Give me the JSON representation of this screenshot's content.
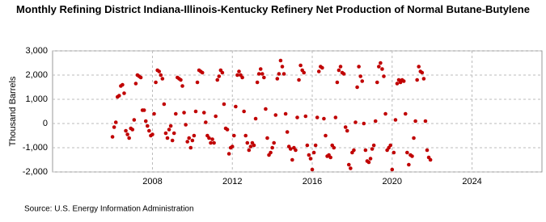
{
  "chart_data": {
    "type": "scatter",
    "title": "Monthly Refining District Indiana-Illinois-Kentucky Refinery Net Production of Normal Butane-Butylene",
    "y_label": "Thousand Barrels",
    "source": "Source: U.S. Energy Information Administration",
    "xlim": [
      2003,
      2027.5
    ],
    "xticks": [
      2008,
      2012,
      2016,
      2020,
      2024
    ],
    "ylim": [
      -2000,
      3000
    ],
    "yticks": [
      {
        "value": -2000,
        "label": "-2,000"
      },
      {
        "value": -1000,
        "label": "-1,000"
      },
      0,
      {
        "value": 1000,
        "label": "1,000"
      },
      {
        "value": 2000,
        "label": "2,000"
      },
      {
        "value": 3000,
        "label": "3,000"
      }
    ],
    "grid": true,
    "series": [
      {
        "color": "#c00000",
        "x": [
          2006,
          2006.083,
          2006.167,
          2006.25,
          2006.333,
          2006.417,
          2006.5,
          2006.583,
          2006.667,
          2006.75,
          2006.833,
          2006.917,
          2007,
          2007.083,
          2007.167,
          2007.25,
          2007.333,
          2007.417,
          2007.5,
          2007.583,
          2007.667,
          2007.75,
          2007.833,
          2007.917,
          2008,
          2008.083,
          2008.167,
          2008.25,
          2008.333,
          2008.417,
          2008.5,
          2008.583,
          2008.667,
          2008.75,
          2008.833,
          2008.917,
          2009,
          2009.083,
          2009.167,
          2009.25,
          2009.333,
          2009.417,
          2009.5,
          2009.583,
          2009.667,
          2009.75,
          2009.833,
          2009.917,
          2010,
          2010.083,
          2010.167,
          2010.25,
          2010.333,
          2010.417,
          2010.5,
          2010.583,
          2010.667,
          2010.75,
          2010.833,
          2010.917,
          2011,
          2011.083,
          2011.167,
          2011.25,
          2011.333,
          2011.417,
          2011.5,
          2011.583,
          2011.667,
          2011.75,
          2011.833,
          2011.917,
          2012,
          2012.083,
          2012.167,
          2012.25,
          2012.333,
          2012.417,
          2012.5,
          2012.583,
          2012.667,
          2012.75,
          2012.833,
          2012.917,
          2013,
          2013.083,
          2013.167,
          2013.25,
          2013.333,
          2013.417,
          2013.5,
          2013.583,
          2013.667,
          2013.75,
          2013.833,
          2013.917,
          2014,
          2014.083,
          2014.167,
          2014.25,
          2014.333,
          2014.417,
          2014.5,
          2014.583,
          2014.667,
          2014.75,
          2014.833,
          2014.917,
          2015,
          2015.083,
          2015.167,
          2015.25,
          2015.333,
          2015.417,
          2015.5,
          2015.583,
          2015.667,
          2015.75,
          2015.833,
          2015.917,
          2016,
          2016.083,
          2016.167,
          2016.25,
          2016.333,
          2016.417,
          2016.5,
          2016.583,
          2016.667,
          2016.75,
          2016.833,
          2016.917,
          2017,
          2017.083,
          2017.167,
          2017.25,
          2017.333,
          2017.417,
          2017.5,
          2017.583,
          2017.667,
          2017.75,
          2017.833,
          2017.917,
          2018,
          2018.083,
          2018.167,
          2018.25,
          2018.333,
          2018.417,
          2018.5,
          2018.583,
          2018.667,
          2018.75,
          2018.833,
          2018.917,
          2019,
          2019.083,
          2019.167,
          2019.25,
          2019.333,
          2019.417,
          2019.5,
          2019.583,
          2019.667,
          2019.75,
          2019.833,
          2019.917,
          2020,
          2020.083,
          2020.167,
          2020.25,
          2020.333,
          2020.417,
          2020.5,
          2020.583,
          2020.667,
          2020.75,
          2020.833,
          2020.917,
          2021,
          2021.083,
          2021.167,
          2021.25,
          2021.333,
          2021.417,
          2021.5,
          2021.583,
          2021.667,
          2021.75,
          2021.833,
          2021.917
        ],
        "values": [
          -550,
          -150,
          50,
          1100,
          1150,
          1550,
          1600,
          1250,
          -300,
          -450,
          -600,
          -200,
          -250,
          150,
          1650,
          2000,
          1950,
          1900,
          550,
          550,
          100,
          -100,
          -300,
          -500,
          -450,
          400,
          1700,
          2200,
          2150,
          2000,
          1850,
          800,
          -400,
          -600,
          -250,
          -100,
          -700,
          -400,
          400,
          1900,
          1850,
          1800,
          1550,
          450,
          -50,
          -750,
          -600,
          -1000,
          -700,
          -500,
          500,
          1700,
          2200,
          2150,
          2100,
          450,
          50,
          -500,
          -600,
          -800,
          -650,
          -800,
          300,
          1800,
          1950,
          2200,
          2100,
          800,
          -200,
          -250,
          -1250,
          -1000,
          -950,
          -500,
          700,
          2000,
          2150,
          2000,
          1900,
          500,
          -500,
          -800,
          -1100,
          -950,
          -800,
          -900,
          200,
          1700,
          2050,
          2250,
          2050,
          1900,
          600,
          -600,
          -1300,
          -1200,
          -1000,
          -800,
          350,
          1850,
          2050,
          2600,
          2350,
          2050,
          400,
          -350,
          -950,
          -1050,
          -1500,
          -1000,
          -1100,
          250,
          1800,
          2400,
          2200,
          2100,
          300,
          -900,
          -1300,
          -1450,
          -1900,
          -1200,
          -900,
          250,
          2150,
          2350,
          2300,
          200,
          -500,
          -1350,
          -1300,
          -1400,
          -900,
          -1000,
          250,
          1700,
          2200,
          2350,
          2100,
          2050,
          -150,
          -300,
          -1700,
          -1850,
          -1200,
          -1100,
          50,
          1500,
          2350,
          1950,
          1750,
          0,
          -1100,
          -1550,
          -1600,
          -1450,
          -1050,
          -900,
          100,
          1700,
          2350,
          2500,
          2250,
          1950,
          400,
          -1100,
          -1000,
          -900,
          -1900,
          -1200,
          150,
          1650,
          1800,
          1700,
          1800,
          1750,
          400,
          -1200,
          -1700,
          -1300,
          -1350,
          -600,
          100,
          1800,
          2350,
          2150,
          2100,
          1850,
          100,
          -1100,
          -1400,
          -1500
        ]
      }
    ]
  }
}
